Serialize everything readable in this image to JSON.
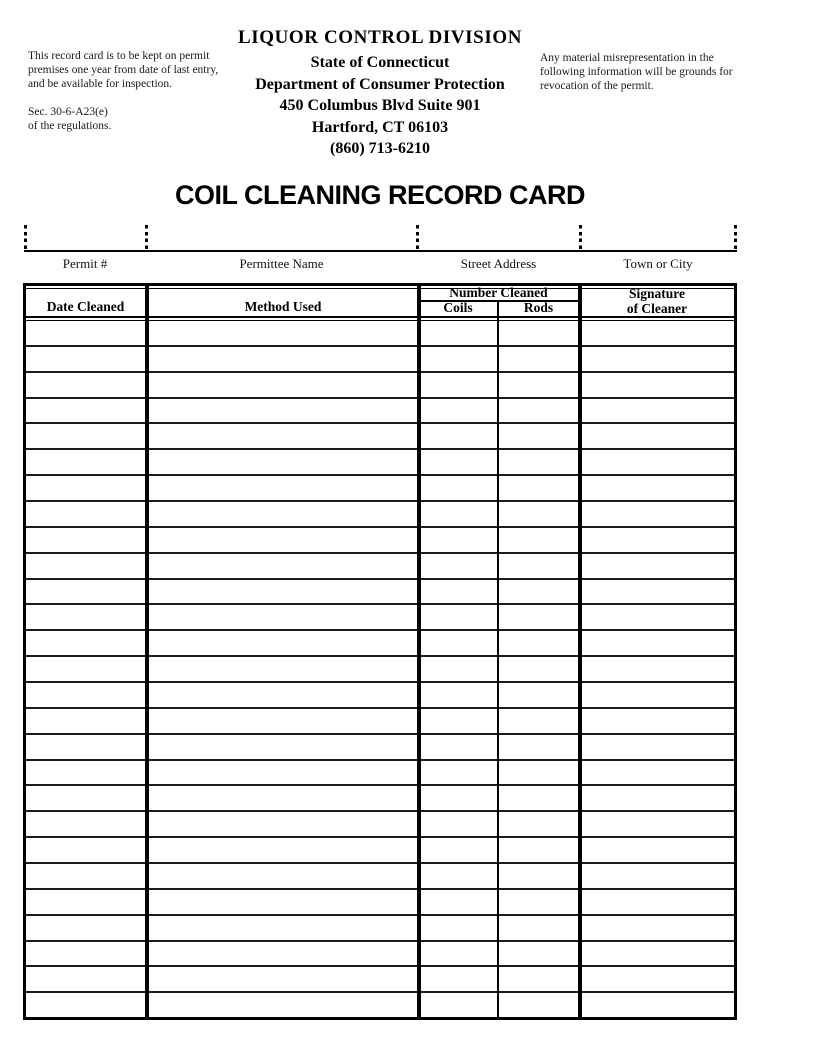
{
  "document": {
    "left_note": {
      "paragraph": "This record card is to be kept on permit premises one year from date of last entry, and be available for inspection.",
      "regulation_line1": "Sec. 30-6-A23(e)",
      "regulation_line2": "of the regulations."
    },
    "agency_header": {
      "division": "LIQUOR CONTROL DIVISION",
      "state": "State of Connecticut",
      "department": "Department of Consumer Protection",
      "address": "450 Columbus Blvd Suite 901",
      "city_state_zip": "Hartford, CT 06103",
      "phone": "(860) 713-6210"
    },
    "right_note": "Any material misrepresentation in the following information will be grounds for revocation of the permit.",
    "title": "COIL CLEANING RECORD CARD",
    "permit_fields": [
      {
        "label": "Permit #",
        "value": ""
      },
      {
        "label": "Permittee Name",
        "value": ""
      },
      {
        "label": "Street Address",
        "value": ""
      },
      {
        "label": "Town or City",
        "value": ""
      }
    ],
    "table": {
      "headers": {
        "date_cleaned": "Date Cleaned",
        "method_used": "Method Used",
        "number_cleaned_group": "Number Cleaned",
        "coils": "Coils",
        "rods": "Rods",
        "signature_line1": "Signature",
        "signature_line2": "of Cleaner"
      },
      "row_count": 27,
      "rows": []
    }
  },
  "colors": {
    "ink": "#000000",
    "paper": "#ffffff"
  }
}
